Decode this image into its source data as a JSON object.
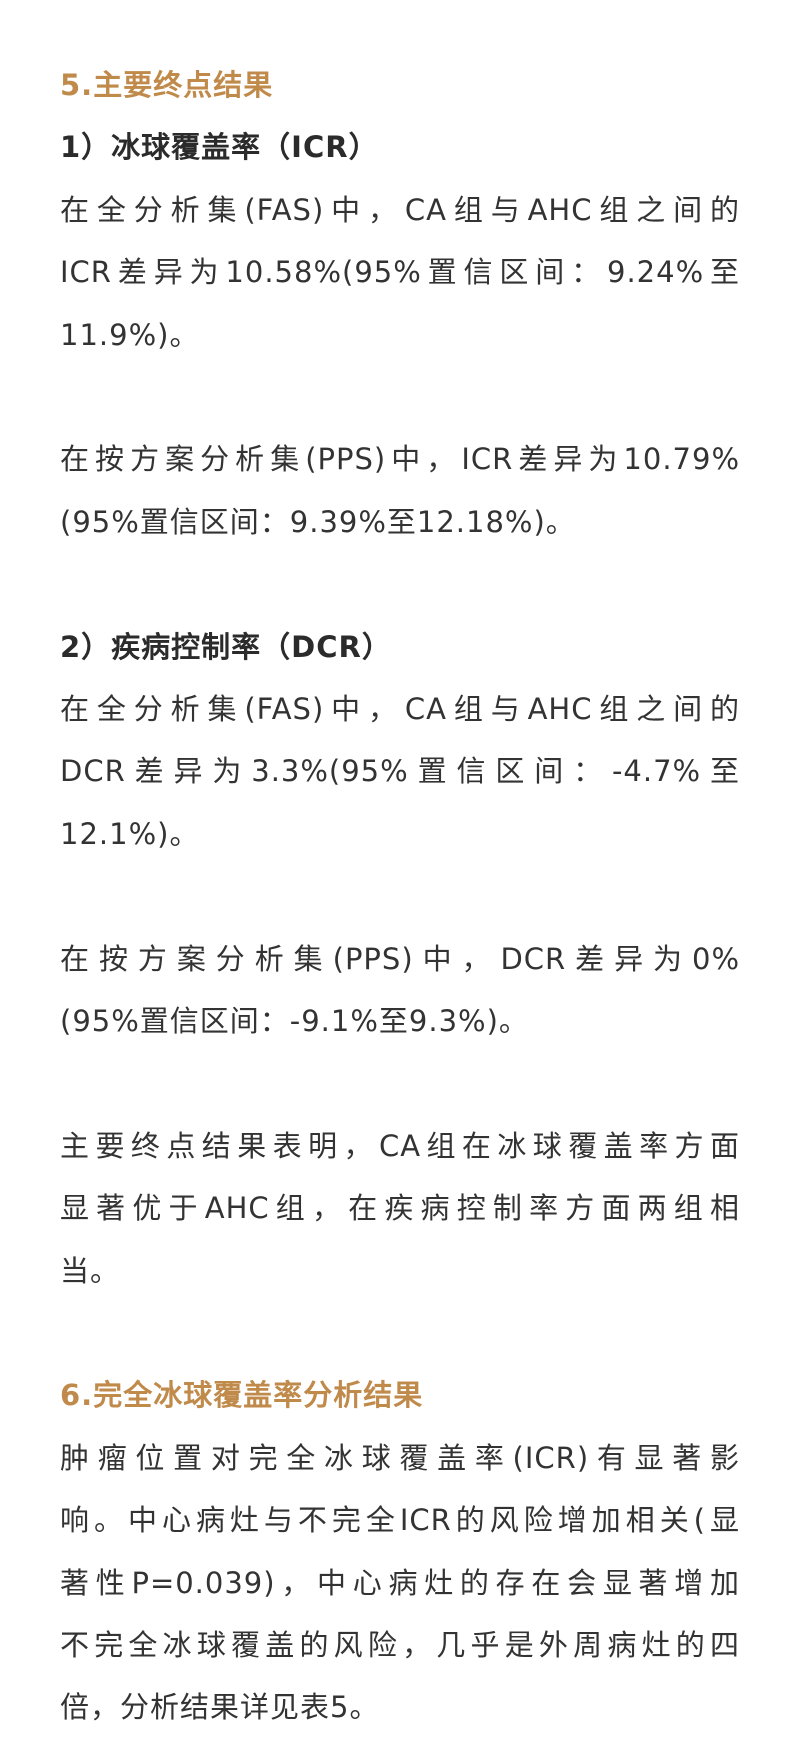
{
  "colors": {
    "heading": "#c08a4b",
    "text": "#333333",
    "background": "#ffffff"
  },
  "section5": {
    "title": "5.主要终点结果",
    "icr": {
      "subtitle": "1）冰球覆盖率（ICR）",
      "fas_lines": [
        "在全分析集(FAS)中，CA组与AHC组之间的",
        "ICR差异为10.58%(95%置信区间：9.24%至",
        "11.9%)。"
      ],
      "pps_lines": [
        "在按方案分析集(PPS)中，ICR差异为10.79%",
        "(95%置信区间：9.39%至12.18%)。"
      ]
    },
    "dcr": {
      "subtitle": "2）疾病控制率（DCR）",
      "fas_lines": [
        "在全分析集(FAS)中，CA组与AHC组之间的",
        "DCR差异为3.3%(95%置信区间：-4.7%至",
        "12.1%)。"
      ],
      "pps_lines": [
        "在按方案分析集(PPS)中，DCR差异为0%",
        "(95%置信区间：-9.1%至9.3%)。"
      ]
    },
    "summary_lines": [
      "主要终点结果表明，CA组在冰球覆盖率方面",
      "显著优于AHC组，在疾病控制率方面两组相",
      "当。"
    ]
  },
  "section6": {
    "title": "6.完全冰球覆盖率分析结果",
    "lines": [
      "肿瘤位置对完全冰球覆盖率(ICR)有显著影",
      "响。中心病灶与不完全ICR的风险增加相关(显",
      "著性P=0.039)，中心病灶的存在会显著增加",
      "不完全冰球覆盖的风险，几乎是外周病灶的四",
      "倍，分析结果详见表5。"
    ]
  }
}
